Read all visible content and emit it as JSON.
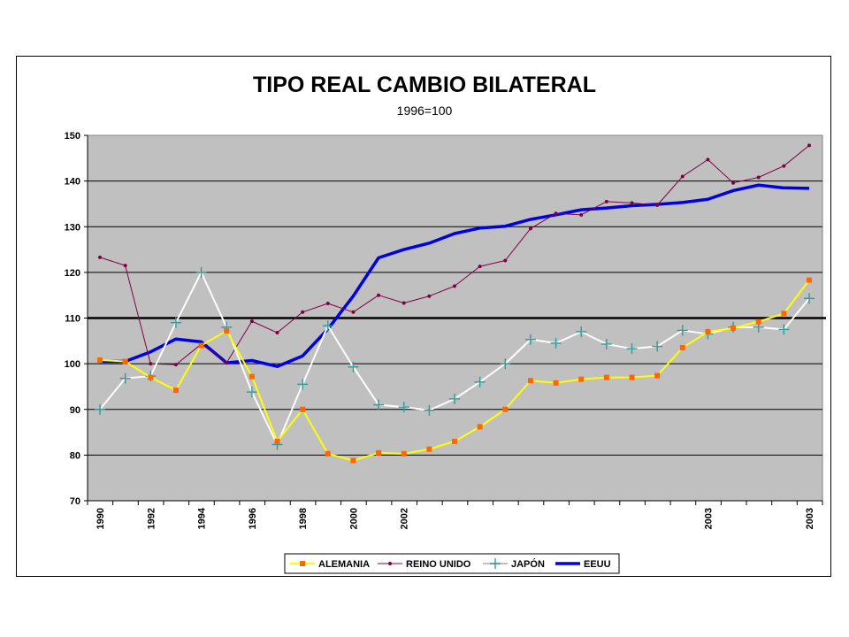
{
  "chart_data": {
    "type": "line",
    "title": "TIPO REAL CAMBIO BILATERAL",
    "subtitle": "1996=100",
    "xlabel": "",
    "ylabel": "",
    "ylim": [
      70,
      150
    ],
    "yticks": [
      70,
      80,
      90,
      100,
      110,
      120,
      130,
      140,
      150
    ],
    "grid": true,
    "legend_position": "bottom",
    "point_count": 29,
    "x_tick_labels": [
      {
        "index": 0,
        "label": "1990"
      },
      {
        "index": 2,
        "label": "1992"
      },
      {
        "index": 4,
        "label": "1994"
      },
      {
        "index": 6,
        "label": "1996"
      },
      {
        "index": 8,
        "label": "1998"
      },
      {
        "index": 10,
        "label": "2000"
      },
      {
        "index": 12,
        "label": "2002"
      },
      {
        "index": 24,
        "label": "2003"
      },
      {
        "index": 28,
        "label": "2003"
      }
    ],
    "reference_line": 110,
    "series": [
      {
        "name": "ALEMANIA",
        "color": "#ffff00",
        "marker": "square",
        "marker_color": "#ff6600",
        "values": [
          100.8,
          100.5,
          97,
          94.2,
          104,
          107.2,
          97.2,
          83,
          90,
          80.3,
          78.8,
          80.5,
          80.3,
          81.3,
          83,
          86.2,
          90,
          96.3,
          95.8,
          96.6,
          97,
          97,
          97.4,
          103.5,
          107,
          107.8,
          109.2,
          111,
          118.3
        ]
      },
      {
        "name": "REINO UNIDO",
        "color": "#800040",
        "marker": "dot",
        "marker_color": "#800040",
        "values": [
          123.3,
          121.5,
          100,
          99.8,
          104.3,
          100.2,
          109.3,
          106.8,
          111.3,
          113.2,
          111.3,
          115,
          113.3,
          114.8,
          117,
          121.3,
          122.6,
          129.6,
          132.9,
          132.6,
          135.5,
          135.2,
          134.7,
          141,
          144.7,
          139.6,
          140.8,
          143.3,
          147.8
        ]
      },
      {
        "name": "JAPÓN",
        "color": "#ffffff",
        "marker": "plus",
        "marker_color": "#339999",
        "values": [
          90,
          96.8,
          97.3,
          109,
          120,
          108,
          93.8,
          82.3,
          95.5,
          108.3,
          99.3,
          91,
          90.5,
          89.8,
          92.3,
          96,
          100,
          105.3,
          104.5,
          107,
          104.3,
          103.3,
          103.8,
          107.3,
          106.5,
          108,
          108,
          107.5,
          114.3
        ]
      },
      {
        "name": "EEUU",
        "color": "#0000e0",
        "marker": "none",
        "marker_color": "#0000e0",
        "values": [
          100.5,
          100.5,
          102.6,
          105.4,
          104.8,
          100.2,
          100.7,
          99.4,
          101.7,
          107.6,
          114.8,
          123.2,
          125,
          126.4,
          128.5,
          129.7,
          130.1,
          131.6,
          132.6,
          133.7,
          134.1,
          134.6,
          134.9,
          135.3,
          136,
          137.9,
          139.1,
          138.5,
          138.4
        ]
      }
    ]
  }
}
